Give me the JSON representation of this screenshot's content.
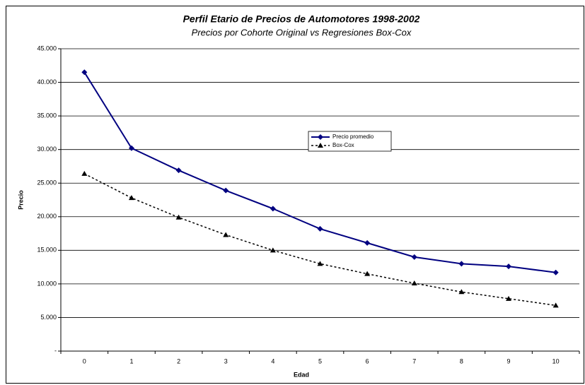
{
  "chart_data": {
    "type": "line",
    "title": "Perfil Etario de Precios de Automotores 1998-2002",
    "subtitle": "Precios por Cohorte Original vs Regresiones Box-Cox",
    "x_label": "Edad",
    "y_label": "Precio",
    "categories": [
      "0",
      "1",
      "2",
      "3",
      "4",
      "5",
      "6",
      "7",
      "8",
      "9",
      "10"
    ],
    "series": [
      {
        "name": "Precio promedio",
        "color": "#000080",
        "marker": "diamond",
        "line_style": "solid",
        "values": [
          41500,
          30200,
          26900,
          23900,
          21200,
          18200,
          16100,
          14000,
          13000,
          12600,
          11700
        ]
      },
      {
        "name": "Box-Cox",
        "color": "#000000",
        "marker": "triangle",
        "line_style": "dotted",
        "values": [
          26400,
          22800,
          19900,
          17300,
          15000,
          13000,
          11500,
          10100,
          8800,
          7800,
          6800
        ]
      }
    ],
    "ylim": [
      0,
      45000
    ],
    "yticks": [
      {
        "value": 0,
        "label": "-"
      },
      {
        "value": 5000,
        "label": "5.000"
      },
      {
        "value": 10000,
        "label": "10.000"
      },
      {
        "value": 15000,
        "label": "15.000"
      },
      {
        "value": 20000,
        "label": "20.000"
      },
      {
        "value": 25000,
        "label": "25.000"
      },
      {
        "value": 30000,
        "label": "30.000"
      },
      {
        "value": 35000,
        "label": "35.000"
      },
      {
        "value": 40000,
        "label": "40.000"
      },
      {
        "value": 45000,
        "label": "45.000"
      }
    ],
    "grid": true,
    "legend_position": "center"
  }
}
